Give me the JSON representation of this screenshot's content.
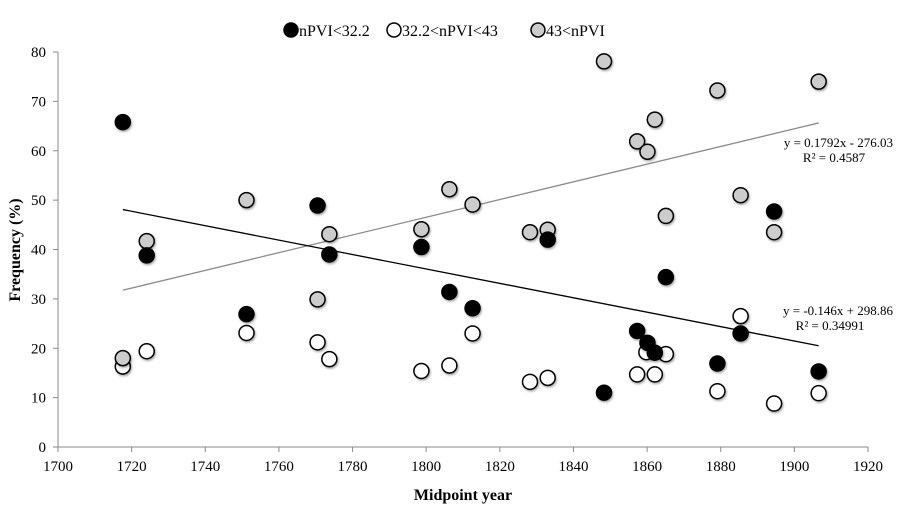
{
  "chart_data": {
    "type": "scatter",
    "title": "",
    "xlabel": "Midpoint year",
    "ylabel": "Frequency (%)",
    "xlim": [
      1700,
      1920
    ],
    "ylim": [
      0,
      80
    ],
    "xticks": [
      "1700",
      "1720",
      "1740",
      "1760",
      "1780",
      "1800",
      "1820",
      "1840",
      "1860",
      "1880",
      "1900",
      "1920"
    ],
    "yticks": [
      "0",
      "10",
      "20",
      "30",
      "40",
      "50",
      "60",
      "70",
      "80"
    ],
    "grid": false,
    "legend_position": "top",
    "series": [
      {
        "name": "nPVI<32.2",
        "fill": "#000000",
        "points": [
          [
            1717.6,
            65.8
          ],
          [
            1724.1,
            38.8
          ],
          [
            1751.2,
            26.9
          ],
          [
            1770.5,
            48.9
          ],
          [
            1773.7,
            39.0
          ],
          [
            1798.7,
            40.5
          ],
          [
            1806.3,
            31.4
          ],
          [
            1812.6,
            28.1
          ],
          [
            1833.0,
            42.0
          ],
          [
            1848.3,
            11.0
          ],
          [
            1857.3,
            23.5
          ],
          [
            1860.1,
            21.1
          ],
          [
            1862.1,
            19.1
          ],
          [
            1865.1,
            34.4
          ],
          [
            1879.1,
            16.9
          ],
          [
            1885.4,
            23.0
          ],
          [
            1894.5,
            47.7
          ],
          [
            1906.6,
            15.3
          ]
        ]
      },
      {
        "name": "32.2<nPVI<43",
        "fill": "#ffffff",
        "points": [
          [
            1717.6,
            16.3
          ],
          [
            1724.1,
            19.4
          ],
          [
            1751.2,
            23.1
          ],
          [
            1770.5,
            21.2
          ],
          [
            1773.7,
            17.8
          ],
          [
            1798.7,
            15.4
          ],
          [
            1806.3,
            16.5
          ],
          [
            1812.6,
            23.0
          ],
          [
            1828.2,
            13.2
          ],
          [
            1833.0,
            14.0
          ],
          [
            1857.3,
            14.7
          ],
          [
            1859.8,
            19.2
          ],
          [
            1862.1,
            14.7
          ],
          [
            1865.1,
            18.8
          ],
          [
            1879.1,
            11.3
          ],
          [
            1885.4,
            26.5
          ],
          [
            1894.5,
            8.8
          ],
          [
            1906.6,
            10.9
          ]
        ]
      },
      {
        "name": "43<nPVI",
        "fill": "#cccccc",
        "points": [
          [
            1717.6,
            18.0
          ],
          [
            1724.1,
            41.7
          ],
          [
            1751.2,
            50.0
          ],
          [
            1770.5,
            29.9
          ],
          [
            1773.7,
            43.1
          ],
          [
            1798.7,
            44.1
          ],
          [
            1806.3,
            52.2
          ],
          [
            1812.6,
            49.1
          ],
          [
            1828.2,
            43.5
          ],
          [
            1833.0,
            44.0
          ],
          [
            1848.3,
            78.1
          ],
          [
            1857.3,
            61.9
          ],
          [
            1860.1,
            59.8
          ],
          [
            1862.1,
            66.3
          ],
          [
            1865.1,
            46.8
          ],
          [
            1879.1,
            72.2
          ],
          [
            1885.4,
            51.0
          ],
          [
            1894.5,
            43.5
          ],
          [
            1906.6,
            74.0
          ]
        ]
      }
    ],
    "trendlines": [
      {
        "series": "43<nPVI",
        "slope": 0.1792,
        "intercept": -276.03,
        "x_range": [
          1717.6,
          1906.6
        ],
        "color": "#8c8c8c",
        "equation": "y = 0.1792x - 276.03",
        "r2": "R² = 0.4587"
      },
      {
        "series": "nPVI<32.2",
        "slope": -0.146,
        "intercept": 298.86,
        "x_range": [
          1717.6,
          1906.6
        ],
        "color": "#000000",
        "equation": "y = -0.146x + 298.86",
        "r2": "R² = 0.34991"
      }
    ]
  }
}
